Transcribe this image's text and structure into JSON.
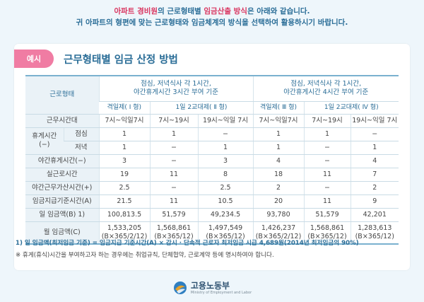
{
  "intro": {
    "line1_pre": "아파트 경비원",
    "line1_mid": "의 근로형태별 ",
    "line1_accent": "임금산출 방식",
    "line1_post": "은 아래와 같습니다.",
    "line2": "귀 아파트의 형편에 맞는 근로형태와 임금체계의 방식을 선택하여 활용하시기 바랍니다."
  },
  "card": {
    "badge": "예시",
    "title": "근무형태별 임금 산정 방법"
  },
  "table": {
    "col_header": "근로형태",
    "group1": {
      "line1": "점심, 저녁식사 각 1시간,",
      "line2": "야간휴게시간 3시간 부여 기준"
    },
    "group2": {
      "line1": "점심, 저녁식사 각 1시간,",
      "line2": "야간휴게시간 4시간 부여 기준"
    },
    "sub": {
      "type1": "격일제( Ⅰ 형)",
      "type2": "1일 2교대제( Ⅱ 형)",
      "type3": "격일제( Ⅲ 형)",
      "type4": "1일 2교대제( Ⅳ 형)"
    },
    "rows": {
      "hours": {
        "label": "근무시간대",
        "c": [
          "7시~익일7시",
          "7시~19시",
          "19시~익일 7시",
          "7시~익일7시",
          "7시~19시",
          "19시~익일 7시"
        ]
      },
      "rest_lunch": {
        "group": "휴게시간",
        "group2": "(−)",
        "label": "점심",
        "c": [
          "1",
          "1",
          "−",
          "1",
          "1",
          "−"
        ]
      },
      "rest_dinner": {
        "label": "저녁",
        "c": [
          "1",
          "−",
          "1",
          "1",
          "−",
          "1"
        ]
      },
      "night_rest": {
        "label": "야간휴게시간(−)",
        "c": [
          "3",
          "−",
          "3",
          "4",
          "−",
          "4"
        ]
      },
      "actual": {
        "label": "실근로시간",
        "c": [
          "19",
          "11",
          "8",
          "18",
          "11",
          "7"
        ]
      },
      "night_add": {
        "label": "야간근무가산시간(+)",
        "c": [
          "2.5",
          "−",
          "2.5",
          "2",
          "−",
          "2"
        ]
      },
      "base": {
        "label": "임금지급기준시간(A)",
        "c": [
          "21.5",
          "11",
          "10.5",
          "20",
          "11",
          "9"
        ]
      },
      "daily": {
        "label": "일 임금액(B) 1)",
        "c": [
          "100,813.5",
          "51,579",
          "49,234.5",
          "93,780",
          "51,579",
          "42,201"
        ]
      },
      "monthly": {
        "label": "월 임금액(C)",
        "c": [
          "1,533,205",
          "1,568,861",
          "1,497,549",
          "1,426,237",
          "1,568,861",
          "1,283,613"
        ],
        "f": [
          "(B×365/2/12)",
          "(B×365/12)",
          "(B×365/12)",
          "(B×365/2/12)",
          "(B×365/12)",
          "(B×365/12)"
        ]
      }
    }
  },
  "notes": {
    "note1": "1) 일 임금액(최저임금 기준) = 임금지급 기준시간(A) × 감시 · 단속적 근로자 최저임금 시급 4,689원(2014년 최저임금의 90%)",
    "note2": "※ 휴게(휴식)시간을 부여하고자 하는 경우에는 취업규칙, 단체협약, 근로계약 등에 명시하여야 합니다."
  },
  "footer": {
    "logo_name": "고용노동부",
    "logo_sub": "Ministry of Employment and Labor"
  }
}
